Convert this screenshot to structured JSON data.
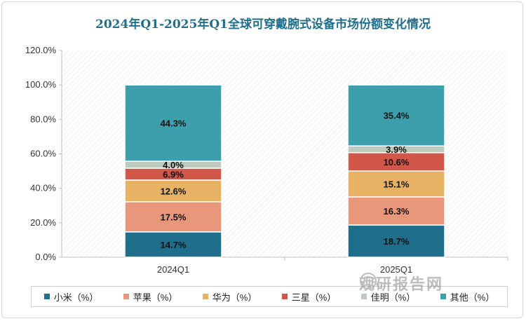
{
  "chart_data": {
    "type": "bar",
    "stacked": true,
    "title": "2024年Q1-2025年Q1全球可穿戴腕式设备市场份额变化情况",
    "categories": [
      "2024Q1",
      "2025Q1"
    ],
    "ylim": [
      0,
      120
    ],
    "yticks": [
      "0.0%",
      "20.0%",
      "40.0%",
      "60.0%",
      "80.0%",
      "100.0%",
      "120.0%"
    ],
    "series": [
      {
        "name": "小米（%）",
        "color": "#1f6e8c",
        "values": [
          14.7,
          18.7
        ],
        "labels": [
          "14.7%",
          "18.7%"
        ]
      },
      {
        "name": "苹果（%）",
        "color": "#e8977a",
        "values": [
          17.5,
          16.3
        ],
        "labels": [
          "17.5%",
          "16.3%"
        ]
      },
      {
        "name": "华为（%）",
        "color": "#e8b264",
        "values": [
          12.6,
          15.1
        ],
        "labels": [
          "12.6%",
          "15.1%"
        ]
      },
      {
        "name": "三星（%）",
        "color": "#d0574a",
        "values": [
          6.9,
          10.6
        ],
        "labels": [
          "6.9%",
          "10.6%"
        ]
      },
      {
        "name": "佳明（%）",
        "color": "#bccbbd",
        "values": [
          4.0,
          3.9
        ],
        "labels": [
          "4.0%",
          "3.9%"
        ]
      },
      {
        "name": "其他（%）",
        "color": "#3d9fac",
        "values": [
          44.3,
          35.4
        ],
        "labels": [
          "44.3%",
          "35.4%"
        ]
      }
    ],
    "grid": false,
    "legend_position": "bottom"
  },
  "watermark": {
    "text": "观研报告网"
  }
}
